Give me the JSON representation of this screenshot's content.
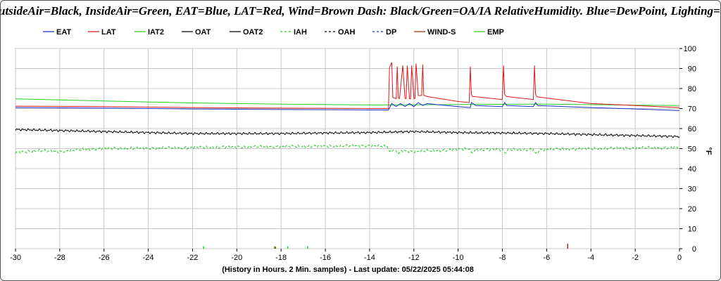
{
  "banner": "utsideAir=Black, InsideAir=Green, EAT=Blue, LAT=Red, Wind=Brown   Dash:  Black/Green=OA/IA  RelativeHumidity. Blue=DewPoint,  Lighting=Green",
  "chart_data": {
    "type": "line",
    "xlabel": "(History in Hours. 2 Min. samples) - Last update: 05/22/2025 05:44:08",
    "ylabel": "°F",
    "xlim": [
      -30,
      0
    ],
    "ylim": [
      0,
      100
    ],
    "x_ticks": [
      "-30",
      "-28",
      "-26",
      "-24",
      "-22",
      "-20",
      "-18",
      "-16",
      "-14",
      "-12",
      "-10",
      "-8",
      "-6",
      "-4",
      "-2",
      "0"
    ],
    "y_ticks": [
      "0",
      "10",
      "20",
      "30",
      "40",
      "50",
      "60",
      "70",
      "80",
      "90",
      "100"
    ],
    "grid": true,
    "legend_position": "top",
    "legend": [
      {
        "name": "EAT",
        "color": "#1a2fd0",
        "dash": "solid"
      },
      {
        "name": "LAT",
        "color": "#e01818",
        "dash": "solid"
      },
      {
        "name": "IAT2",
        "color": "#22cc22",
        "dash": "solid"
      },
      {
        "name": "OAT",
        "color": "#000000",
        "dash": "solid"
      },
      {
        "name": "OAT2",
        "color": "#000000",
        "dash": "solid"
      },
      {
        "name": "IAH",
        "color": "#22cc22",
        "dash": "dash"
      },
      {
        "name": "OAH",
        "color": "#000000",
        "dash": "dash"
      },
      {
        "name": "DP",
        "color": "#1a2fd0",
        "dash": "dash"
      },
      {
        "name": "WIND-S",
        "color": "#a03010",
        "dash": "solid"
      },
      {
        "name": "EMP",
        "color": "#22cc22",
        "dash": "solid"
      }
    ],
    "series": [
      {
        "name": "IAT2",
        "color": "#22cc22",
        "dash": "solid",
        "x": [
          -30,
          -26,
          -22,
          -18,
          -14,
          -13.1,
          -10,
          -6,
          -2,
          0
        ],
        "y": [
          74.8,
          73.8,
          72.8,
          72.2,
          71.8,
          71.8,
          72.0,
          72.2,
          71.7,
          71.5
        ]
      },
      {
        "name": "LAT",
        "color": "#e01818",
        "dash": "solid",
        "x": [
          -30,
          -26,
          -22,
          -18,
          -14,
          -13.15,
          -13.1,
          -13.0,
          -12.95,
          -12.9,
          -12.8,
          -12.75,
          -12.7,
          -12.65,
          -12.5,
          -12.4,
          -12.35,
          -12.3,
          -12.2,
          -12.15,
          -12.1,
          -12.0,
          -11.95,
          -11.9,
          -11.8,
          -11.65,
          -11.6,
          -11.55,
          -11.5,
          -11.4,
          -10,
          -9.5,
          -9.45,
          -9.4,
          -9.35,
          -9.3,
          -8.0,
          -7.95,
          -7.9,
          -7.85,
          -7.8,
          -6.6,
          -6.55,
          -6.5,
          -6.45,
          -6.4,
          -4,
          -2,
          0
        ],
        "y": [
          71.2,
          71.0,
          70.5,
          70.2,
          70.0,
          70.0,
          90.5,
          93.0,
          75.5,
          75.3,
          75.0,
          91.0,
          75.2,
          75.0,
          91.5,
          75.0,
          75.0,
          91.5,
          75.0,
          74.8,
          91.5,
          75.0,
          75.0,
          92.5,
          76.5,
          76.5,
          92.0,
          76.5,
          76.5,
          76.0,
          73.5,
          73.0,
          91.0,
          77.0,
          76.0,
          76.0,
          74.5,
          91.5,
          77.0,
          76.5,
          76.0,
          74.5,
          91.5,
          77.0,
          76.0,
          75.8,
          72.5,
          71.5,
          70.5
        ]
      },
      {
        "name": "EAT",
        "color": "#1a2fd0",
        "dash": "solid",
        "x": [
          -30,
          -26,
          -22,
          -18,
          -14,
          -13.15,
          -13.0,
          -12.8,
          -12.6,
          -12.4,
          -12.2,
          -12.0,
          -11.8,
          -11.6,
          -11.4,
          -11.0,
          -10.0,
          -9.45,
          -9.4,
          -9.2,
          -8.0,
          -7.9,
          -7.8,
          -6.6,
          -6.5,
          -6.4,
          -4,
          -2,
          0
        ],
        "y": [
          70.5,
          70.2,
          69.8,
          69.5,
          69.3,
          69.3,
          72.5,
          71.0,
          72.5,
          71.0,
          72.5,
          71.0,
          73.0,
          71.5,
          72.5,
          72.0,
          71.0,
          70.5,
          73.0,
          71.5,
          71.0,
          73.0,
          71.5,
          71.0,
          73.0,
          71.5,
          70.5,
          69.8,
          69.0
        ]
      },
      {
        "name": "OAT",
        "color": "#000000",
        "dash": "solid",
        "x": [
          -30,
          -28,
          -26,
          -24,
          -22,
          -20,
          -18,
          -16,
          -14,
          -12,
          -10,
          -8,
          -6,
          -4,
          -2,
          0
        ],
        "y": [
          59.5,
          59.0,
          58.5,
          58.0,
          57.5,
          57.5,
          57.5,
          57.8,
          58.0,
          58.5,
          58.0,
          57.8,
          57.5,
          57.0,
          56.5,
          56.0
        ]
      },
      {
        "name": "IAH",
        "color": "#22cc22",
        "dash": "dash",
        "x": [
          -30,
          -29,
          -28,
          -27,
          -26,
          -24,
          -22,
          -20,
          -18,
          -16,
          -14,
          -13.2,
          -13.1,
          -12.9,
          -12.7,
          -12.5,
          -12.0,
          -11.0,
          -10.0,
          -9.5,
          -9.4,
          -9.2,
          -8.0,
          -7.9,
          -7.7,
          -6.6,
          -6.5,
          -6.3,
          -4,
          -2,
          0
        ],
        "y": [
          48.0,
          49.0,
          48.5,
          49.5,
          50.0,
          50.2,
          50.5,
          50.8,
          51.0,
          51.2,
          51.5,
          51.0,
          48.0,
          49.5,
          47.5,
          49.0,
          48.5,
          49.0,
          49.5,
          50.0,
          48.0,
          49.5,
          49.5,
          47.8,
          49.5,
          49.5,
          47.5,
          49.5,
          50.0,
          50.3,
          50.5
        ]
      }
    ],
    "emp_marks": [
      {
        "x": -21.5,
        "y": 1.2
      },
      {
        "x": -18.3,
        "y": 1.2
      },
      {
        "x": -17.7,
        "y": 1.2
      },
      {
        "x": -16.8,
        "y": 1.2
      }
    ],
    "wind_marks": [
      {
        "x": -18.25,
        "y": 1.0
      },
      {
        "x": -5.05,
        "y": 2.5
      }
    ]
  }
}
